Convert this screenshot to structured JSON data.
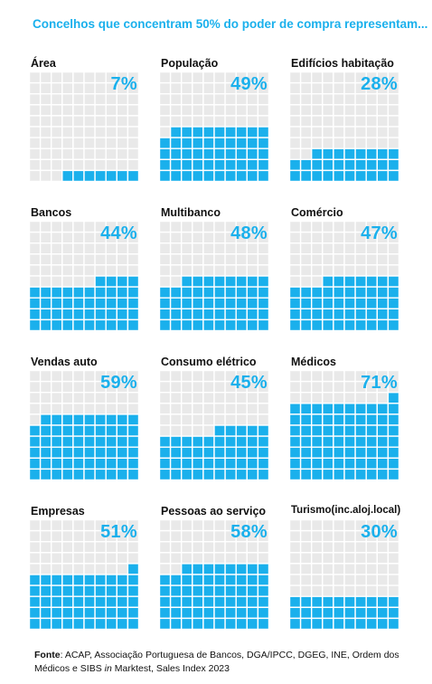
{
  "title": "Concelhos que concentram 50% do poder de compra representam...",
  "colors": {
    "filled": "#1ab0ec",
    "empty": "#e9e9e9",
    "title": "#1ab0ec"
  },
  "chart_data": {
    "type": "waffle",
    "grid": "10x10 (100 squares per panel)",
    "unit": "%",
    "panels": [
      {
        "label": "Área",
        "value": 7
      },
      {
        "label": "População",
        "value": 49
      },
      {
        "label": "Edifícios habitação",
        "value": 28
      },
      {
        "label": "Bancos",
        "value": 44
      },
      {
        "label": "Multibanco",
        "value": 48
      },
      {
        "label": "Comércio",
        "value": 47
      },
      {
        "label": "Vendas auto",
        "value": 59
      },
      {
        "label": "Consumo elétrico",
        "value": 45
      },
      {
        "label": "Médicos",
        "value": 71
      },
      {
        "label": "Empresas",
        "value": 51
      },
      {
        "label": "Pessoas ao serviço",
        "value": 58
      },
      {
        "label": "Turismo(inc.aloj.local)",
        "value": 30
      }
    ]
  },
  "source": {
    "label": "Fonte",
    "text_1": ": ACAP, Associação Portuguesa de Bancos, DGA/IPCC,  DGEG, INE, Ordem dos Médicos e SIBS ",
    "italic": "in",
    "text_2": " Marktest, Sales Index 2023"
  }
}
